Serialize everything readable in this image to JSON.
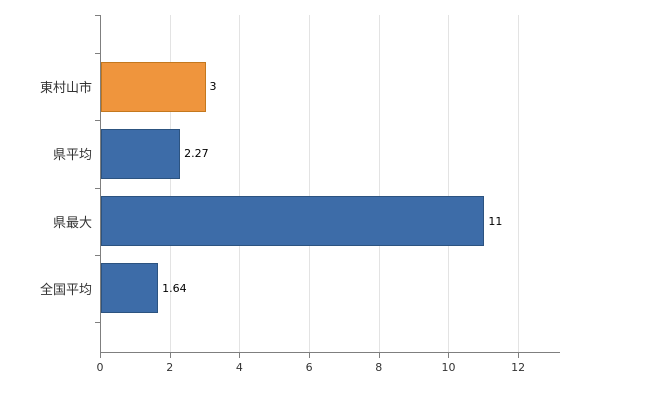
{
  "chart_data": {
    "type": "bar",
    "orientation": "horizontal",
    "title": "",
    "xlabel": "",
    "ylabel": "",
    "categories": [
      "東村山市",
      "県平均",
      "県最大",
      "全国平均"
    ],
    "values": [
      3,
      2.27,
      11,
      1.64
    ],
    "value_labels": [
      "3",
      "2.27",
      "11",
      "1.64"
    ],
    "xlim": [
      0,
      13.2
    ],
    "xticks": [
      0,
      2,
      4,
      6,
      8,
      10,
      12
    ],
    "xtick_labels": [
      "0",
      "2",
      "4",
      "6",
      "8",
      "10",
      "12"
    ],
    "grid": true,
    "legend": false,
    "bar_colors": [
      "#EF953D",
      "#3D6CA8",
      "#3D6CA8",
      "#3D6CA8"
    ],
    "bar_border_colors": [
      "#C4781E",
      "#2C5380",
      "#2C5380",
      "#2C5380"
    ],
    "colors": {
      "background": "#FFFFFF",
      "grid": "#E3E3E3",
      "axis": "#7F7F7F",
      "tick_text": "#333333",
      "category_text": "#333333",
      "value_text": "#000000"
    }
  }
}
